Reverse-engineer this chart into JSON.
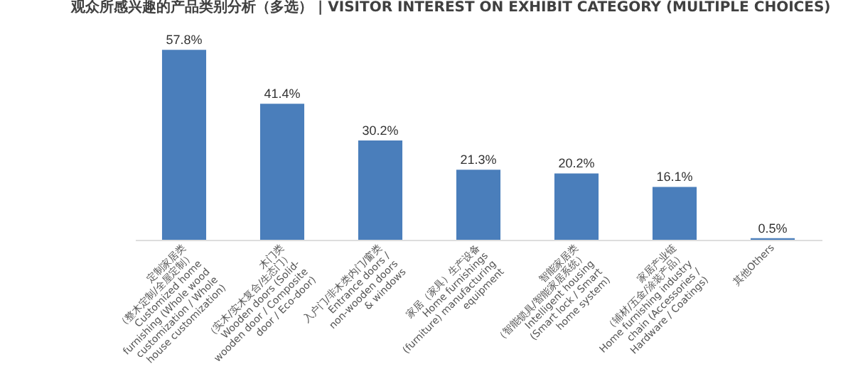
{
  "chart_data": {
    "type": "bar",
    "title": "观众所感兴趣的产品类别分析（多选） | VISITOR INTEREST ON EXHIBIT CATEGORY (MULTIPLE CHOICES)",
    "categories": [
      "定制家居类\n（整木定制/全屋定制）\nCustomized home\nfurnishing (Whole wood\ncustomization / Whole\nhouse customization)",
      "木门类\n（实木/实木复合/生态门）\nWooden doors (Solid-\nwooden door / Composite\ndoor / Eco-door)",
      "入户门/非木类内门/窗类\nEntrance doors /\nnon-wooden doors\n& windows",
      "家居（家具）生产设备\nHome furnishings\n(furniture) manufacturing\nequipment",
      "智能家居类\n（智能锁具/智能家居系统）\nIntelligent housing\n(Smart lock / Smart\nhome system)",
      "家居产业链\n（辅材/五金/涂装产品）\nHome furnishing industry\nchain (Accessories /\nHardware / Coatings)",
      "其他Others"
    ],
    "values": [
      57.8,
      41.4,
      30.2,
      21.3,
      20.2,
      16.1,
      0.5
    ],
    "value_labels": [
      "57.8%",
      "41.4%",
      "30.2%",
      "21.3%",
      "20.2%",
      "16.1%",
      "0.5%"
    ],
    "color": "#4a7ebb"
  }
}
